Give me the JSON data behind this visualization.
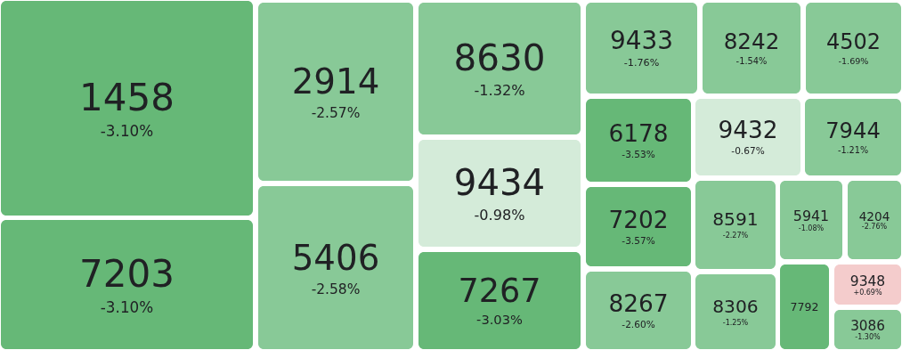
{
  "chart_data": {
    "type": "other",
    "categories": [
      "1458",
      "7203",
      "2914",
      "5406",
      "8630",
      "9434",
      "7267",
      "9433",
      "8242",
      "4502",
      "6178",
      "7202",
      "8267",
      "9432",
      "8591",
      "8306",
      "7944",
      "5941",
      "4204",
      "7792",
      "9348",
      "3086"
    ],
    "values": [
      -3.1,
      -3.1,
      -2.57,
      -2.58,
      -1.32,
      -0.98,
      -3.03,
      -1.76,
      -1.54,
      -1.69,
      -3.53,
      -3.57,
      -2.6,
      -0.67,
      -2.27,
      -1.25,
      -1.21,
      -1.08,
      -2.76,
      null,
      0.69,
      -1.3
    ],
    "value_labels": [
      "-3.10%",
      "-3.10%",
      "-2.57%",
      "-2.58%",
      "-1.32%",
      "-0.98%",
      "-3.03%",
      "-1.76%",
      "-1.54%",
      "-1.69%",
      "-3.53%",
      "-3.57%",
      "-2.60%",
      "-0.67%",
      "-2.27%",
      "-1.25%",
      "-1.21%",
      "-1.08%",
      "-2.76%",
      null,
      "+0.69%",
      "-1.30%"
    ],
    "colors": [
      "#66b877",
      "#66b877",
      "#88c997",
      "#88c997",
      "#88c997",
      "#d4ebd9",
      "#66b877",
      "#88c997",
      "#88c997",
      "#88c997",
      "#66b877",
      "#66b877",
      "#88c997",
      "#d4ebd9",
      "#88c997",
      "#88c997",
      "#88c997",
      "#88c997",
      "#88c997",
      "#66b877",
      "#f4cccc",
      "#88c997"
    ]
  }
}
